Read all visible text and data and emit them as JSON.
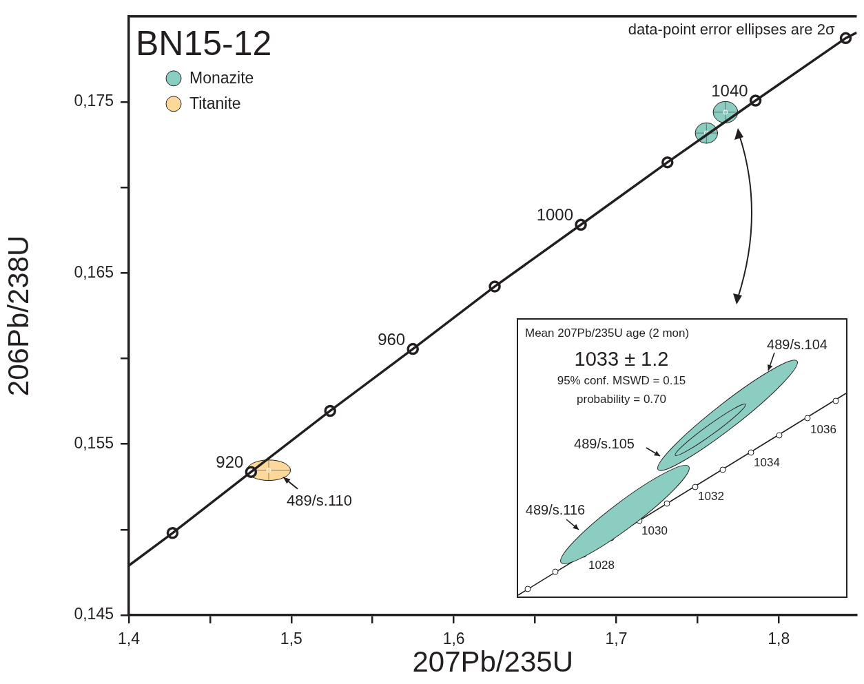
{
  "chart_data": [
    {
      "type": "scatter",
      "title": "BN15-12",
      "xlabel": "207Pb/235U",
      "ylabel": "206Pb/238U",
      "xlim": [
        1.4,
        1.848
      ],
      "ylim": [
        0.145,
        0.18
      ],
      "xticks": [
        {
          "value": 1.4,
          "label": "1,4"
        },
        {
          "value": 1.45,
          "label": null
        },
        {
          "value": 1.5,
          "label": "1,5"
        },
        {
          "value": 1.55,
          "label": null
        },
        {
          "value": 1.6,
          "label": "1,6"
        },
        {
          "value": 1.65,
          "label": null
        },
        {
          "value": 1.7,
          "label": "1,7"
        },
        {
          "value": 1.75,
          "label": null
        },
        {
          "value": 1.8,
          "label": "1,8"
        }
      ],
      "yticks": [
        {
          "value": 0.145,
          "label": "0,145"
        },
        {
          "value": 0.15,
          "label": null
        },
        {
          "value": 0.155,
          "label": "0,155"
        },
        {
          "value": 0.16,
          "label": null
        },
        {
          "value": 0.165,
          "label": "0,165"
        },
        {
          "value": 0.17,
          "label": null
        },
        {
          "value": 0.175,
          "label": "0,175"
        }
      ],
      "grid": false,
      "legend": "top left",
      "annotations": [
        "data-point error ellipses are 2σ",
        {
          "text": "489/s.110",
          "x": 1.4861,
          "y": 0.15347
        },
        {
          "text": "920",
          "x": 1.4752,
          "y": 0.15337
        },
        {
          "text": "960",
          "x": 1.5748,
          "y": 0.16056
        },
        {
          "text": "1000",
          "x": 1.6782,
          "y": 0.16782
        },
        {
          "text": "1040",
          "x": 1.7857,
          "y": 0.17508
        }
      ],
      "series": [
        {
          "type": "line",
          "marker": "none",
          "color": "#231f20",
          "x": [
            1.4,
            1.4269,
            1.4752,
            1.5239,
            1.5748,
            1.6252,
            1.6782,
            1.7315,
            1.7857,
            1.8412,
            1.848
          ],
          "values": [
            0.1479,
            0.1498,
            0.15337,
            0.15694,
            0.16056,
            0.16421,
            0.16782,
            0.17147,
            0.17508,
            0.17873,
            0.17905
          ]
        },
        {
          "type": "scatter",
          "marker": "circle",
          "color": "#231f20",
          "x": [
            1.4269,
            1.4752,
            1.5239,
            1.5748,
            1.6252,
            1.6782,
            1.7315,
            1.7857,
            1.8412
          ],
          "values": [
            0.1498,
            0.15337,
            0.15694,
            0.16056,
            0.16421,
            0.16782,
            0.17147,
            0.17508,
            0.17873
          ]
        },
        {
          "type": "scatter",
          "name": "Monazite",
          "color": "#8ccdc2",
          "x": [
            1.7672,
            1.7555
          ],
          "values": [
            0.1744,
            0.17318
          ],
          "xerrors": [
            0.0076,
            0.0069
          ],
          "errors": [
            0.00063,
            0.0006
          ]
        },
        {
          "type": "scatter",
          "name": "Titanite",
          "color": "#fcd89a",
          "x": [
            1.4861
          ],
          "values": [
            0.15347
          ],
          "xerrors": [
            0.0134
          ],
          "errors": [
            0.0006
          ]
        }
      ]
    },
    {
      "type": "other",
      "title": "Mean 207Pb/235U age (2 mon)",
      "annotations": [
        "1033 ± 1.2",
        "95% conf. MSWD = 0.15",
        "probability = 0.70",
        "489/s.104",
        "489/s.105",
        "489/s.116",
        "1028",
        "1030",
        "1032",
        "1034",
        "1036"
      ]
    }
  ]
}
